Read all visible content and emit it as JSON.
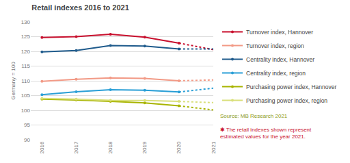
{
  "chart_data": {
    "type": "line",
    "title": "Retail indexes 2016 to 2021",
    "y_label": "Germany = 100",
    "categories": [
      "2016",
      "2017",
      "2018",
      "2019",
      "2020",
      "2021"
    ],
    "series": [
      {
        "name": "Turnover index, Hannover",
        "color": "#c8102e",
        "values": [
          124.7,
          125.0,
          125.8,
          124.8,
          122.8,
          120.6
        ]
      },
      {
        "name": "Turnover index, region",
        "color": "#f29a86",
        "values": [
          109.8,
          110.5,
          111.0,
          110.8,
          110.0,
          110.3
        ]
      },
      {
        "name": "Centrality index, Hannover",
        "color": "#1f5b8c",
        "values": [
          119.8,
          120.3,
          122.0,
          121.8,
          120.8,
          120.8
        ]
      },
      {
        "name": "Centrality index, region",
        "color": "#2a9fd6",
        "values": [
          105.3,
          106.3,
          107.0,
          106.8,
          106.2,
          107.5
        ]
      },
      {
        "name": "Purchasing power index, Hannover",
        "color": "#a8b400",
        "values": [
          103.8,
          103.5,
          103.0,
          102.5,
          101.5,
          100.1
        ]
      },
      {
        "name": "Purchasing power index, region",
        "color": "#d9df7a",
        "values": [
          104.0,
          103.8,
          103.4,
          103.3,
          103.0,
          102.6
        ]
      }
    ],
    "ylim": [
      90,
      130
    ],
    "yticks": [
      90,
      95,
      100,
      105,
      110,
      115,
      120,
      125,
      130
    ],
    "grid": true,
    "legend": "right",
    "source": "Source: MB Research 2021",
    "note": "✱ The retail indexes shown represent estimated values for the year 2021."
  }
}
